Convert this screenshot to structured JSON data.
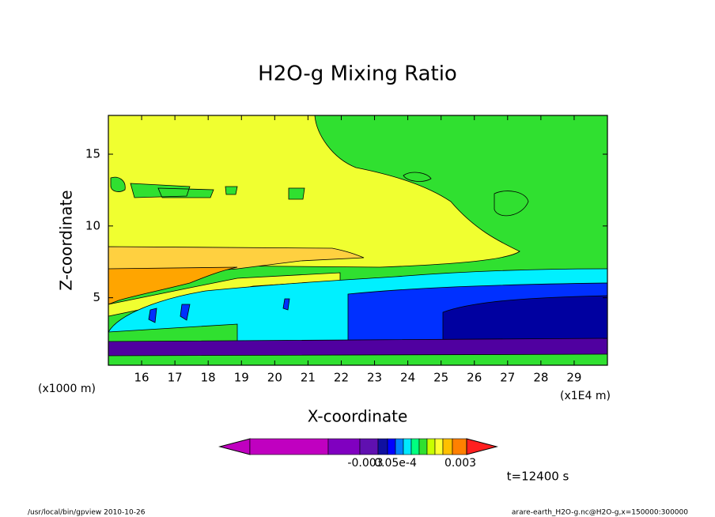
{
  "chart_data": {
    "type": "contour",
    "title": "H2O-g Mixing Ratio",
    "xlabel": "X-coordinate",
    "ylabel": "Z-coordinate",
    "x_unit_label": "(x1E4 m)",
    "y_unit_label": "(x1000 m)",
    "xlim": [
      15,
      30
    ],
    "ylim": [
      0.3,
      17.7
    ],
    "xticks": [
      16,
      17,
      18,
      19,
      20,
      21,
      22,
      23,
      24,
      25,
      26,
      27,
      28,
      29
    ],
    "yticks": [
      5,
      10,
      15
    ],
    "colorbar_colors": [
      "#c000c0",
      "#c000c0",
      "#8000c0",
      "#6010b0",
      "#1010a0",
      "#0000ff",
      "#0080ff",
      "#00e8ff",
      "#00ff80",
      "#30e030",
      "#c8ff00",
      "#ffff30",
      "#ffc000",
      "#ff8000",
      "#ff2020"
    ],
    "colorbar_labels": [
      "-0.003",
      "0.05e-4",
      "0.003"
    ],
    "time_label": "t=12400 s",
    "footer_left": "/usr/local/bin/gpview  2010-10-26",
    "footer_right": "arare-earth_H2O-g.nc@H2O-g,x=150000:300000"
  }
}
